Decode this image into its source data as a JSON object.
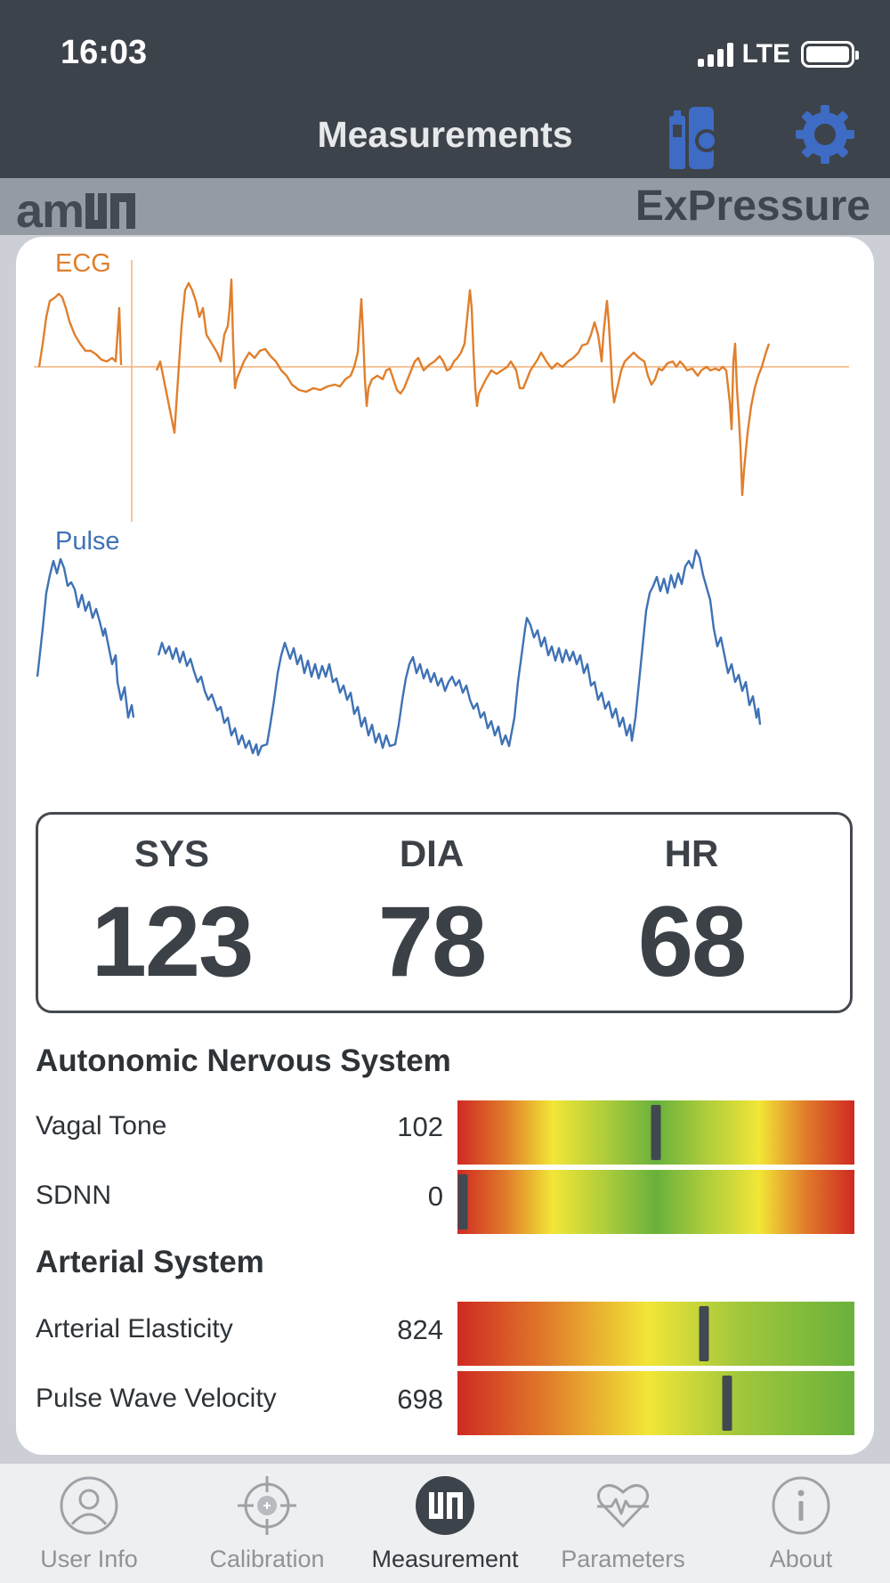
{
  "status_bar": {
    "time": "16:03",
    "network": "LTE"
  },
  "nav": {
    "title": "Measurements",
    "icons": [
      "device-status-icon",
      "gear-icon"
    ],
    "accent_color": "#3e6bc4"
  },
  "brand": {
    "logo_text": "am",
    "app_name": "ExPressure"
  },
  "waveforms": {
    "ecg": {
      "label": "ECG",
      "color": "#e07f2c"
    },
    "pulse": {
      "label": "Pulse",
      "color": "#3f72b5"
    }
  },
  "readings": {
    "sys": {
      "label": "SYS",
      "value": "123"
    },
    "dia": {
      "label": "DIA",
      "value": "78"
    },
    "hr": {
      "label": "HR",
      "value": "68"
    }
  },
  "autonomic": {
    "title": "Autonomic Nervous System",
    "metrics": [
      {
        "name": "Vagal Tone",
        "value": "102",
        "gauge_position": 0.5
      },
      {
        "name": "SDNN",
        "value": "0",
        "gauge_position": 0.01
      }
    ]
  },
  "arterial": {
    "title": "Arterial System",
    "metrics": [
      {
        "name": "Arterial Elasticity",
        "value": "824",
        "gauge_position": 0.62
      },
      {
        "name": "Pulse Wave Velocity",
        "value": "698",
        "gauge_position": 0.68
      }
    ]
  },
  "tabs": [
    {
      "label": "User Info",
      "icon": "user-icon",
      "active": false
    },
    {
      "label": "Calibration",
      "icon": "crosshair-icon",
      "active": false
    },
    {
      "label": "Measurement",
      "icon": "measurement-icon",
      "active": true
    },
    {
      "label": "Parameters",
      "icon": "heart-pulse-icon",
      "active": false
    },
    {
      "label": "About",
      "icon": "info-icon",
      "active": false
    }
  ]
}
